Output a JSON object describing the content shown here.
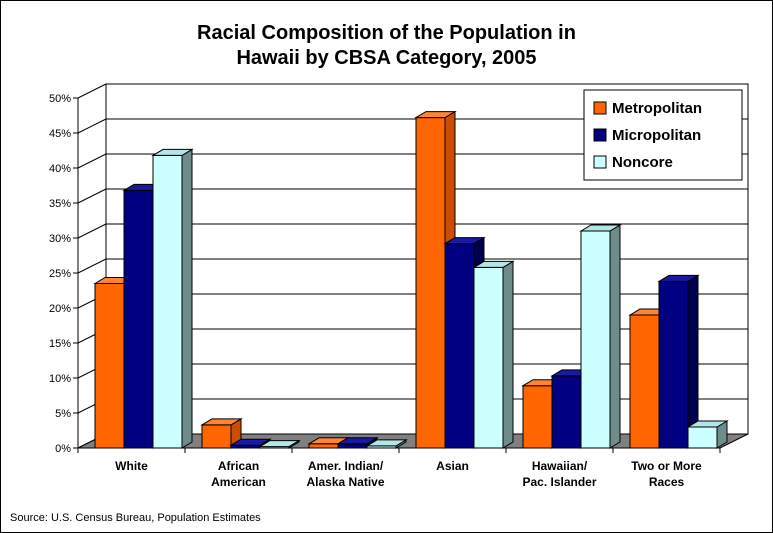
{
  "chart_data": {
    "type": "bar",
    "title_line1": "Racial Composition of the Population in",
    "title_line2": "Hawaii by CBSA Category, 2005",
    "categories": [
      [
        "White"
      ],
      [
        "African",
        "American"
      ],
      [
        "Amer. Indian/",
        "Alaska Native"
      ],
      [
        "Asian"
      ],
      [
        "Hawaiian/",
        "Pac. Islander"
      ],
      [
        "Two or More",
        "Races"
      ]
    ],
    "series": [
      {
        "name": "Metropolitan",
        "color": "#FF6600",
        "side_color": "#CC4D00",
        "top_color": "#FF8533",
        "values": [
          23.5,
          3.3,
          0.6,
          47.2,
          8.9,
          19.0
        ]
      },
      {
        "name": "Micropolitan",
        "color": "#000080",
        "side_color": "#000050",
        "top_color": "#1A1AA0",
        "values": [
          36.8,
          0.4,
          0.6,
          29.2,
          10.3,
          23.8
        ]
      },
      {
        "name": "Noncore",
        "color": "#CCFFFF",
        "side_color": "#6E8C8C",
        "top_color": "#B3E6E6",
        "values": [
          41.8,
          0.2,
          0.3,
          25.8,
          31.0,
          3.0
        ]
      }
    ],
    "y_ticks": [
      "0%",
      "5%",
      "10%",
      "15%",
      "20%",
      "25%",
      "30%",
      "35%",
      "40%",
      "45%",
      "50%"
    ],
    "ylim": [
      0,
      50
    ],
    "grid": true,
    "legend_position": "top-right",
    "floor_color": "#808080",
    "source": "Source: U.S. Census Bureau, Population Estimates"
  }
}
